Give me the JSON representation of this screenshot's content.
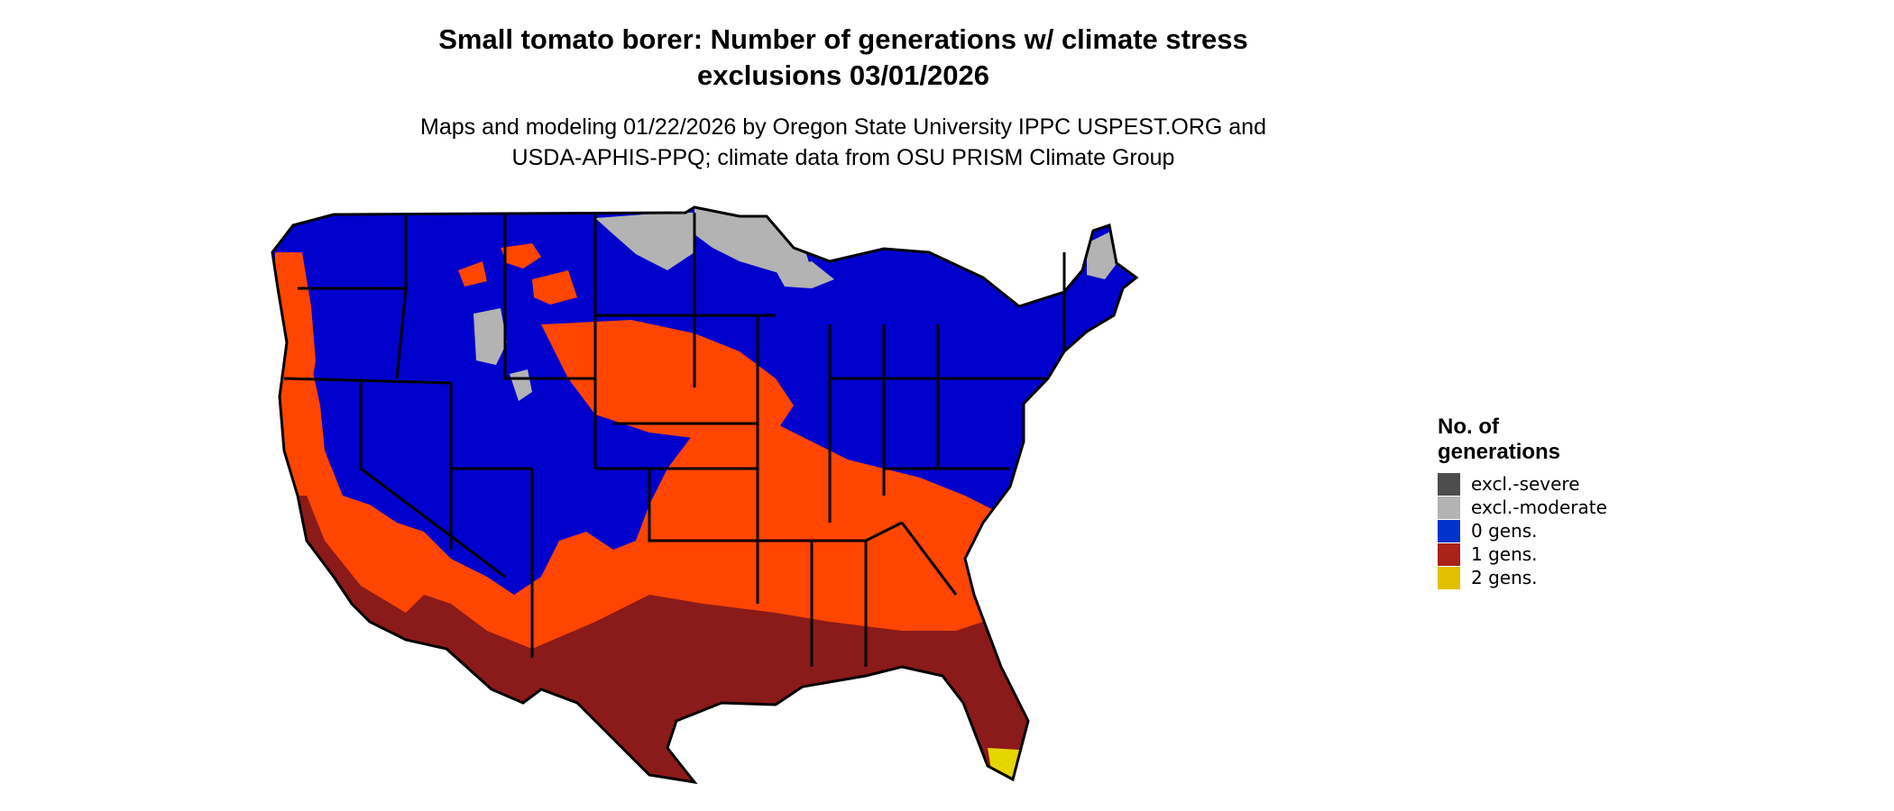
{
  "title_line1": "Small tomato borer: Number of generations w/ climate stress",
  "title_line2": "exclusions 03/01/2026",
  "subtitle_line1": "Maps and modeling 01/22/2026 by Oregon State University IPPC USPEST.ORG and",
  "subtitle_line2": "USDA-APHIS-PPQ; climate data from OSU PRISM Climate Group",
  "legend": {
    "title": "No. of generations",
    "items": [
      {
        "label": "excl.-severe",
        "color": "#4d4d4d"
      },
      {
        "label": "excl.-moderate",
        "color": "#b3b3b3"
      },
      {
        "label": "0 gens.",
        "color": "#0033cc"
      },
      {
        "label": "1 gens.",
        "color": "#aa2218"
      },
      {
        "label": "2 gens.",
        "color": "#e0c000"
      }
    ]
  },
  "colors": {
    "blue": "#0000cc",
    "orange": "#ff4500",
    "dark_red": "#8b1a1a",
    "gray": "#b3b3b3",
    "yellow": "#e6d600"
  }
}
